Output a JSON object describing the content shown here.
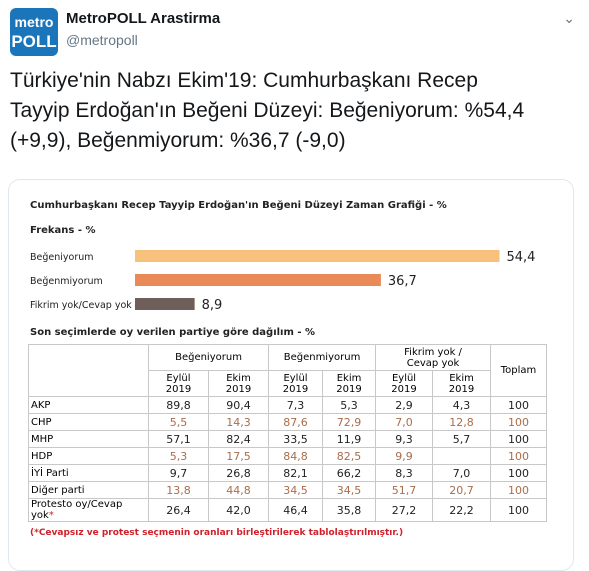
{
  "user": {
    "name": "MetroPOLL Arastirma",
    "handle": "@metropoll",
    "avatar": [
      "metro",
      "POLL"
    ]
  },
  "tweet_text": "Türkiye'nin Nabzı Ekim'19: Cumhurbaşkanı Recep Tayyip Erdoğan'ın Beğeni Düzeyi: Beğeniyorum: %54,4 (+9,9), Beğenmiyorum: %36,7 (-9,0)",
  "chart_data": {
    "type": "bar",
    "orientation": "horizontal",
    "title": "Cumhurbaşkanı Recep Tayyip Erdoğan'ın Beğeni Düzeyi Zaman Grafiği - %",
    "subtitle": "Frekans - %",
    "categories": [
      "Beğeniyorum",
      "Beğenmiyorum",
      "Fikrim yok/Cevap yok"
    ],
    "values": [
      54.4,
      36.7,
      8.9
    ],
    "value_labels": [
      "54,4",
      "36,7",
      "8,9"
    ],
    "colors": [
      "#f8c27c",
      "#ea8a57",
      "#6f5f5a"
    ]
  },
  "table": {
    "title": "Son seçimlerde oy verilen partiye göre dağılım - %",
    "groups": [
      "Beğeniyorum",
      "Beğenmiyorum",
      [
        "Fikrim yok /",
        "Cevap yok"
      ],
      "Toplam"
    ],
    "subheaders": [
      [
        "Eylül",
        "2019"
      ],
      [
        "Ekim",
        "2019"
      ],
      [
        "Eylül",
        "2019"
      ],
      [
        "Ekim",
        "2019"
      ],
      [
        "Eylül",
        "2019"
      ],
      [
        "Ekim",
        "2019"
      ]
    ],
    "rows": [
      {
        "label": "AKP",
        "cells": [
          "89,8",
          "90,4",
          "7,3",
          "5,3",
          "2,9",
          "4,3",
          "100"
        ],
        "color": "#222222"
      },
      {
        "label": "CHP",
        "cells": [
          "5,5",
          "14,3",
          "87,6",
          "72,9",
          "7,0",
          "12,8",
          "100"
        ],
        "color": "#a86d4c"
      },
      {
        "label": "MHP",
        "cells": [
          "57,1",
          "82,4",
          "33,5",
          "11,9",
          "9,3",
          "5,7",
          "100"
        ],
        "color": "#222222"
      },
      {
        "label": "HDP",
        "cells": [
          "5,3",
          "17,5",
          "84,8",
          "82,5",
          "9,9",
          null,
          "100"
        ],
        "color": "#a86d4c"
      },
      {
        "label": "İYİ Parti",
        "cells": [
          "9,7",
          "26,8",
          "82,1",
          "66,2",
          "8,3",
          "7,0",
          "100"
        ],
        "color": "#222222"
      },
      {
        "label": "Diğer parti",
        "cells": [
          "13,8",
          "44,8",
          "34,5",
          "34,5",
          "51,7",
          "20,7",
          "100"
        ],
        "color": "#a86d4c"
      },
      {
        "label": "Protesto oy/Cevap yok",
        "mark": "*",
        "cells": [
          "26,4",
          "42,0",
          "46,4",
          "35,8",
          "27,2",
          "22,2",
          "100"
        ],
        "color": "#222222"
      }
    ],
    "footnote": "(*Cevapsız ve protest seçmenin oranları birleştirilerek tablolaştırılmıştır.)"
  }
}
